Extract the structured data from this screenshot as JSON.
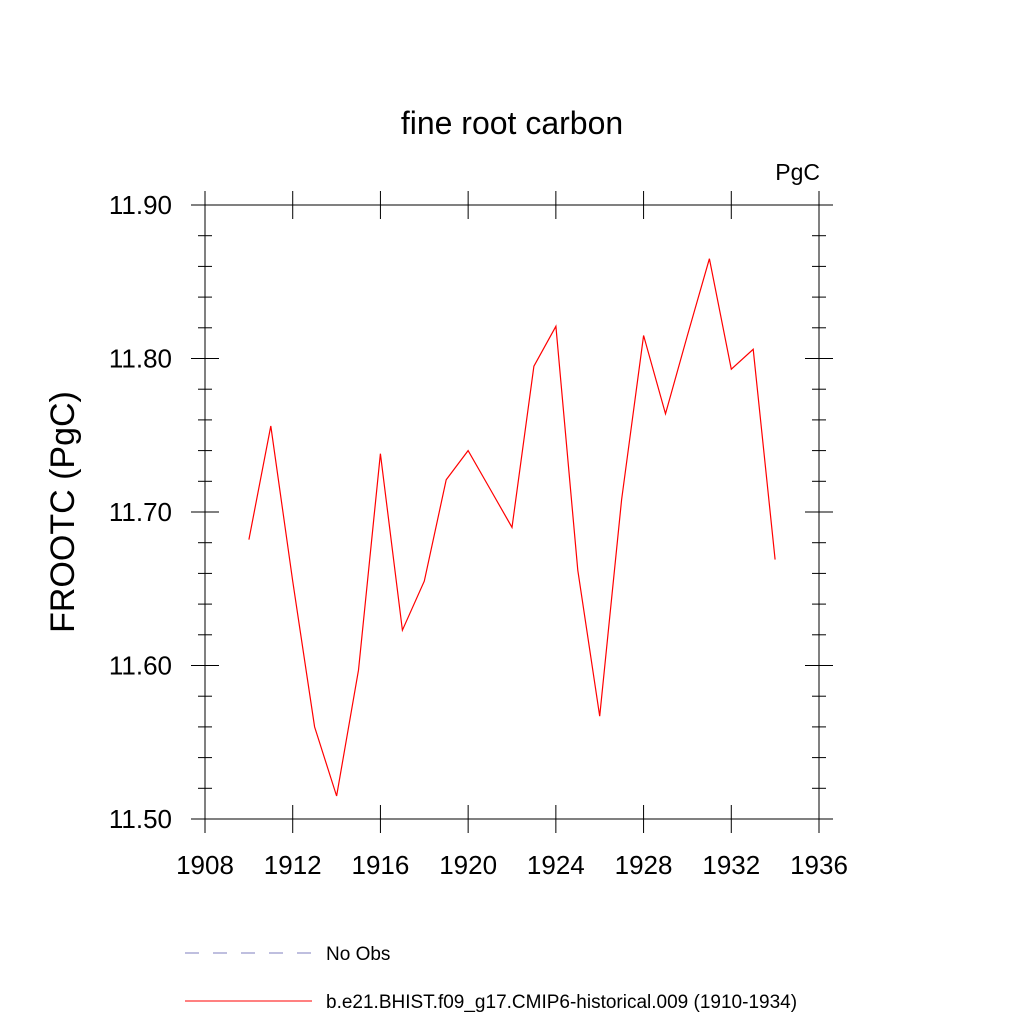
{
  "chart_data": {
    "type": "line",
    "title": "fine root carbon",
    "units_label": "PgC",
    "ylabel": "FROOTC  (PgC)",
    "xlabel": "",
    "xlim": [
      1908,
      1936
    ],
    "ylim": [
      11.5,
      11.9
    ],
    "x_ticks": [
      1908,
      1912,
      1916,
      1920,
      1924,
      1928,
      1932,
      1936
    ],
    "y_ticks": [
      11.5,
      11.6,
      11.7,
      11.8,
      11.9
    ],
    "y_tick_labels": [
      "11.50",
      "11.60",
      "11.70",
      "11.80",
      "11.90"
    ],
    "grid": false,
    "legend_position": "bottom",
    "series": [
      {
        "name": "b.e21.BHIST.f09_g17.CMIP6-historical.009 (1910-1934)",
        "color": "#ff0000",
        "style": "solid",
        "x": [
          1910,
          1911,
          1912,
          1913,
          1914,
          1915,
          1916,
          1917,
          1918,
          1919,
          1920,
          1921,
          1922,
          1923,
          1924,
          1925,
          1926,
          1927,
          1928,
          1929,
          1930,
          1931,
          1932,
          1933,
          1934
        ],
        "y": [
          11.682,
          11.756,
          11.655,
          11.56,
          11.515,
          11.597,
          11.738,
          11.623,
          11.655,
          11.721,
          11.74,
          11.715,
          11.69,
          11.795,
          11.821,
          11.662,
          11.567,
          11.708,
          11.815,
          11.764,
          11.815,
          11.865,
          11.793,
          11.806,
          11.669
        ]
      }
    ],
    "legend": [
      {
        "label": "No Obs",
        "color": "#7f7fbf",
        "style": "dashed"
      },
      {
        "label": "b.e21.BHIST.f09_g17.CMIP6-historical.009 (1910-1934)",
        "color": "#ff0000",
        "style": "solid"
      }
    ]
  }
}
